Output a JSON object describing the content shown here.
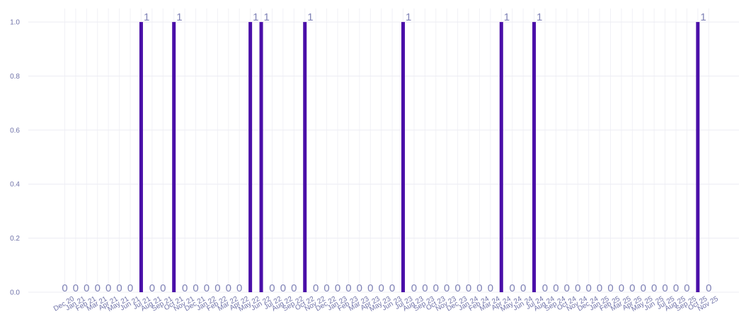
{
  "chart_data": {
    "type": "bar",
    "categories": [
      "Dec 20",
      "Jan 21",
      "Feb 21",
      "Mar 21",
      "Apr 21",
      "May 21",
      "Jun 21",
      "Jul 21",
      "Aug 21",
      "Sep 21",
      "Oct 21",
      "Nov 21",
      "Dec 21",
      "Jan 22",
      "Feb 22",
      "Mar 22",
      "Apr 22",
      "May 22",
      "Jun 22",
      "Jul 22",
      "Aug 22",
      "Sep 22",
      "Oct 22",
      "Nov 22",
      "Dec 22",
      "Jan 23",
      "Feb 23",
      "Mar 23",
      "Apr 23",
      "May 23",
      "Jun 23",
      "Jul 23",
      "Aug 23",
      "Sep 23",
      "Oct 23",
      "Nov 23",
      "Dec 23",
      "Jan 24",
      "Feb 24",
      "Mar 24",
      "Apr 24",
      "May 24",
      "Jun 24",
      "Jul 24",
      "Aug 24",
      "Sep 24",
      "Oct 24",
      "Nov 24",
      "Dec 24",
      "Jan 25",
      "Feb 25",
      "Mar 25",
      "Apr 25",
      "May 25",
      "Jun 25",
      "Jul 25",
      "Aug 25",
      "Sep 25",
      "Oct 25",
      "Nov 25"
    ],
    "values": [
      0,
      0,
      0,
      0,
      0,
      0,
      0,
      1,
      0,
      0,
      1,
      0,
      0,
      0,
      0,
      0,
      0,
      1,
      1,
      0,
      0,
      0,
      1,
      0,
      0,
      0,
      0,
      0,
      0,
      0,
      0,
      1,
      0,
      0,
      0,
      0,
      0,
      0,
      0,
      0,
      1,
      0,
      0,
      1,
      0,
      0,
      0,
      0,
      0,
      0,
      0,
      0,
      0,
      0,
      0,
      0,
      0,
      0,
      1,
      0
    ],
    "yticks": [
      "0.0",
      "0.2",
      "0.4",
      "0.6",
      "0.8",
      "1.0"
    ],
    "ylim": [
      0,
      1.05
    ],
    "bar_color": "#4a0fa8",
    "label_color": "#7f82b6",
    "tick_color": "#6f72a8",
    "grid": true
  }
}
